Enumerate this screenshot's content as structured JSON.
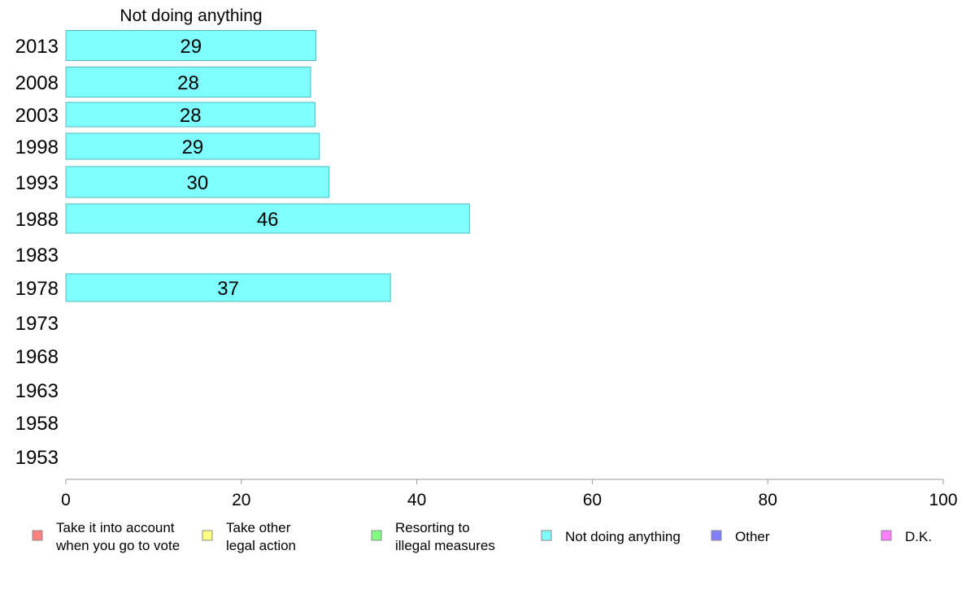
{
  "chart_data": {
    "type": "bar",
    "orientation": "horizontal",
    "title": "Not doing anything",
    "categories": [
      "2013",
      "2008",
      "2003",
      "1998",
      "1993",
      "1988",
      "1983",
      "1978",
      "1973",
      "1968",
      "1963",
      "1958",
      "1953"
    ],
    "series": [
      {
        "name": "Not doing anything",
        "color": "#80ffff",
        "values": [
          28.5,
          27.9,
          28.4,
          28.9,
          30.0,
          46.0,
          null,
          37.0,
          null,
          null,
          null,
          null,
          null
        ],
        "labels": [
          "29",
          "28",
          "28",
          "29",
          "30",
          "46",
          "",
          "37",
          "",
          "",
          "",
          "",
          ""
        ]
      }
    ],
    "xlim": [
      0,
      100
    ],
    "xticks": [
      "0",
      "20",
      "40",
      "60",
      "80",
      "100"
    ],
    "grid": false,
    "legend": {
      "placement": "bottom",
      "entries": [
        {
          "lines": [
            "Take it into account",
            "when you go to vote"
          ],
          "color": "#ff8080"
        },
        {
          "lines": [
            "Take other",
            "legal action"
          ],
          "color": "#ffff80"
        },
        {
          "lines": [
            "Resorting to",
            "illegal measures"
          ],
          "color": "#80ff80"
        },
        {
          "lines": [
            "Not doing anything"
          ],
          "color": "#80ffff"
        },
        {
          "lines": [
            "Other"
          ],
          "color": "#8080ff"
        },
        {
          "lines": [
            "D.K."
          ],
          "color": "#ff80ff"
        }
      ]
    }
  }
}
